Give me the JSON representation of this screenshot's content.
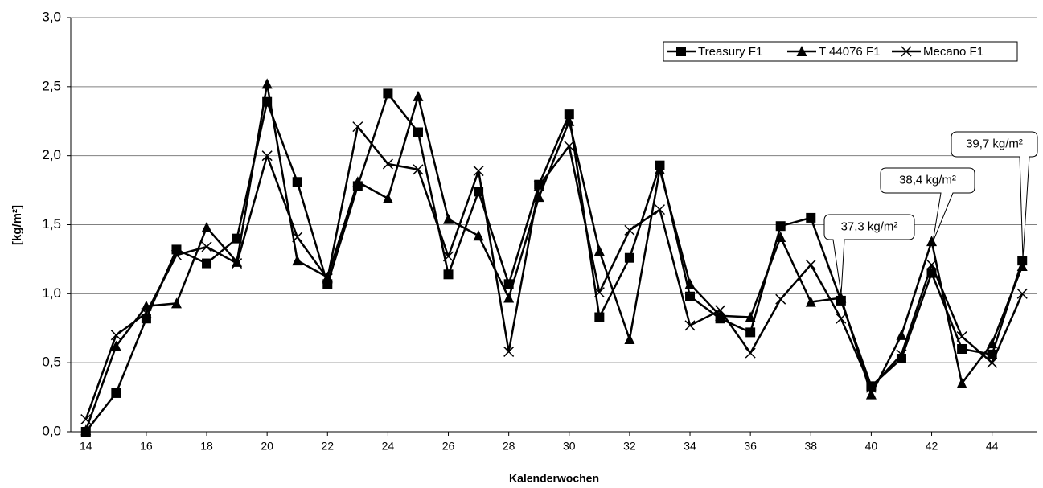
{
  "chart_data": {
    "type": "line",
    "xlabel": "Kalenderwochen",
    "ylabel": "[kg/m²]",
    "x": [
      14,
      15,
      16,
      17,
      18,
      19,
      20,
      21,
      22,
      23,
      24,
      25,
      26,
      27,
      28,
      29,
      30,
      31,
      32,
      33,
      34,
      35,
      36,
      37,
      38,
      39,
      40,
      41,
      42,
      43,
      44,
      45
    ],
    "xlim": [
      13.5,
      45.5
    ],
    "xticks": [
      14,
      16,
      18,
      20,
      22,
      24,
      26,
      28,
      30,
      32,
      34,
      36,
      38,
      40,
      42,
      44
    ],
    "ylim": [
      0,
      3
    ],
    "yticks": [
      {
        "value": 0,
        "label": "0,0"
      },
      {
        "value": 0.5,
        "label": "0,5"
      },
      {
        "value": 1,
        "label": "1,0"
      },
      {
        "value": 1.5,
        "label": "1,5"
      },
      {
        "value": 2,
        "label": "2,0"
      },
      {
        "value": 2.5,
        "label": "2,5"
      },
      {
        "value": 3,
        "label": "3,0"
      }
    ],
    "grid": true,
    "legend": "upper right",
    "series": [
      {
        "name": "Treasury F1",
        "color": "#000000",
        "marker": "square",
        "values": [
          0.0,
          0.28,
          0.82,
          1.32,
          1.22,
          1.4,
          2.39,
          1.81,
          1.07,
          1.78,
          2.45,
          2.17,
          1.14,
          1.74,
          1.07,
          1.79,
          2.3,
          0.83,
          1.26,
          1.93,
          0.98,
          0.82,
          0.72,
          1.49,
          1.55,
          0.95,
          0.33,
          0.53,
          1.15,
          0.6,
          0.56,
          1.24
        ]
      },
      {
        "name": "T 44076 F1",
        "color": "#000000",
        "marker": "triangle",
        "values": [
          0.01,
          0.62,
          0.91,
          0.93,
          1.48,
          1.23,
          2.52,
          1.24,
          1.12,
          1.81,
          1.69,
          2.43,
          1.54,
          1.42,
          0.97,
          1.7,
          2.25,
          1.31,
          0.67,
          1.9,
          1.07,
          0.84,
          0.83,
          1.41,
          0.94,
          0.97,
          0.27,
          0.7,
          1.38,
          0.35,
          0.64,
          1.2
        ]
      },
      {
        "name": "Mecano F1",
        "color": "#000000",
        "marker": "x",
        "values": [
          0.09,
          0.7,
          0.86,
          1.28,
          1.34,
          1.22,
          2.0,
          1.41,
          1.11,
          2.21,
          1.94,
          1.9,
          1.27,
          1.89,
          0.58,
          1.78,
          2.07,
          1.01,
          1.46,
          1.61,
          0.77,
          0.88,
          0.57,
          0.96,
          1.21,
          0.82,
          0.32,
          0.56,
          1.21,
          0.69,
          0.5,
          1.0
        ]
      }
    ],
    "annotations": [
      "37,3 kg/m²",
      "38,4 kg/m²",
      "39,7 kg/m²"
    ]
  }
}
